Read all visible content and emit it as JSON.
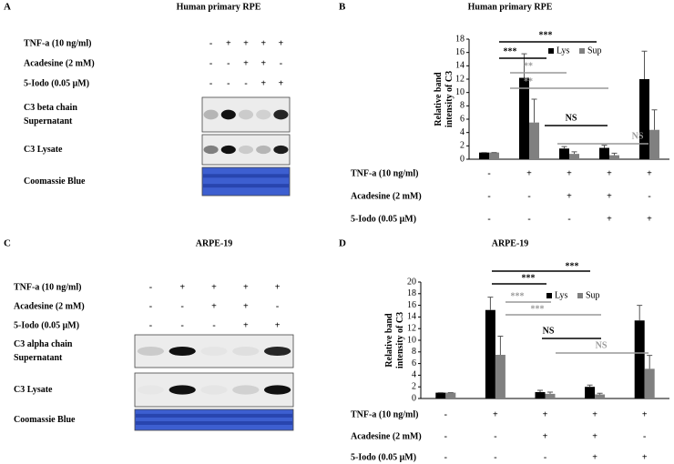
{
  "panel_a": {
    "letter": "A",
    "title": "Human primary RPE",
    "conditions": [
      {
        "label": "TNF-a (10 ng/ml)",
        "signs": [
          "-",
          "+",
          "+",
          "+",
          "+"
        ]
      },
      {
        "label": "Acadesine (2 mM)",
        "signs": [
          "-",
          "-",
          "+",
          "+",
          "-"
        ]
      },
      {
        "label": "5-Iodo (0.05 μM)",
        "signs": [
          "-",
          "-",
          "-",
          "+",
          "+"
        ]
      }
    ],
    "blots": [
      {
        "label": [
          "C3 beta chain",
          "Supernatant"
        ]
      },
      {
        "label": [
          "C3 Lysate"
        ]
      },
      {
        "label": [
          "Coomassie Blue"
        ]
      }
    ]
  },
  "panel_c": {
    "letter": "C",
    "title": "ARPE-19",
    "conditions": [
      {
        "label": "TNF-a (10 ng/ml)",
        "signs": [
          "-",
          "+",
          "+",
          "+",
          "+"
        ]
      },
      {
        "label": "Acadesine (2 mM)",
        "signs": [
          "-",
          "-",
          "+",
          "+",
          "-"
        ]
      },
      {
        "label": "5-Iodo (0.05 μM)",
        "signs": [
          "-",
          "-",
          "-",
          "+",
          "+"
        ]
      }
    ],
    "blots": [
      {
        "label": [
          "C3 alpha chain",
          "Supernatant"
        ]
      },
      {
        "label": [
          "C3 Lysate"
        ]
      },
      {
        "label": [
          "Coomassie Blue"
        ]
      }
    ]
  },
  "chart_data": [
    {
      "type": "bar",
      "letter": "B",
      "title": "Human primary RPE",
      "y_label": [
        "Relative band",
        "intensity of C3"
      ],
      "ylim": [
        0,
        18
      ],
      "yticks": [
        0,
        2,
        4,
        6,
        8,
        10,
        12,
        14,
        16,
        18
      ],
      "series": [
        {
          "name": "Lys",
          "color": "#000000",
          "values": [
            1,
            12.2,
            1.6,
            1.7,
            12.0
          ],
          "errors": [
            0,
            3.6,
            0.3,
            0.4,
            4.2
          ]
        },
        {
          "name": "Sup",
          "color": "#808080",
          "values": [
            1,
            5.5,
            0.8,
            0.6,
            4.4
          ],
          "errors": [
            0,
            3.5,
            0.3,
            0.3,
            3.0
          ]
        }
      ],
      "annotations": [
        "***",
        "***",
        "**",
        "**",
        "NS",
        "NS"
      ],
      "conditions": [
        {
          "label": "TNF-a (10 ng/ml)",
          "signs": [
            "-",
            "+",
            "+",
            "+",
            "+"
          ]
        },
        {
          "label": "Acadesine (2 mM)",
          "signs": [
            "-",
            "-",
            "+",
            "+",
            "-"
          ]
        },
        {
          "label": "5-Iodo (0.05 μM)",
          "signs": [
            "-",
            "-",
            "-",
            "+",
            "+"
          ]
        }
      ]
    },
    {
      "type": "bar",
      "letter": "D",
      "title": "ARPE-19",
      "y_label": [
        "Relative band",
        "intensity of C3"
      ],
      "ylim": [
        0,
        20
      ],
      "yticks": [
        0,
        2,
        4,
        6,
        8,
        10,
        12,
        14,
        16,
        18,
        20
      ],
      "series": [
        {
          "name": "Lys",
          "color": "#000000",
          "values": [
            1,
            15.2,
            1.1,
            2.0,
            13.4
          ],
          "errors": [
            0,
            2.2,
            0.3,
            0.3,
            2.6
          ]
        },
        {
          "name": "Sup",
          "color": "#808080",
          "values": [
            1,
            7.5,
            0.8,
            0.7,
            5.1
          ],
          "errors": [
            0,
            3.2,
            0.3,
            0.2,
            2.3
          ]
        }
      ],
      "annotations": [
        "***",
        "***",
        "***",
        "***",
        "NS",
        "NS"
      ],
      "conditions": [
        {
          "label": "TNF-a (10 ng/ml)",
          "signs": [
            "-",
            "+",
            "+",
            "+",
            "+"
          ]
        },
        {
          "label": "Acadesine (2 mM)",
          "signs": [
            "-",
            "-",
            "+",
            "+",
            "-"
          ]
        },
        {
          "label": "5-Iodo (0.05 μM)",
          "signs": [
            "-",
            "-",
            "-",
            "+",
            "+"
          ]
        }
      ]
    }
  ]
}
